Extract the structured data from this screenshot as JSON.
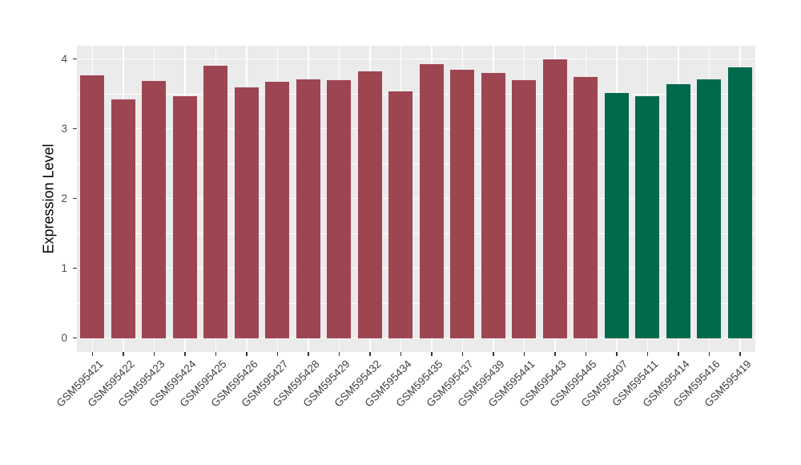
{
  "chart_data": {
    "type": "bar",
    "title": "",
    "xlabel": "",
    "ylabel": "Expression Level",
    "ylim": [
      -0.2,
      4.19
    ],
    "yticks": [
      0,
      1,
      2,
      3,
      4
    ],
    "yticks_minor": [
      0.5,
      1.5,
      2.5,
      3.5
    ],
    "grid": "on",
    "legend_position": "none",
    "categories": [
      "GSM595421",
      "GSM595422",
      "GSM595423",
      "GSM595424",
      "GSM595425",
      "GSM595426",
      "GSM595427",
      "GSM595428",
      "GSM595429",
      "GSM595432",
      "GSM595434",
      "GSM595435",
      "GSM595437",
      "GSM595439",
      "GSM595441",
      "GSM595443",
      "GSM595445",
      "GSM595407",
      "GSM595411",
      "GSM595414",
      "GSM595416",
      "GSM595419"
    ],
    "values": [
      3.76,
      3.42,
      3.69,
      3.47,
      3.9,
      3.59,
      3.67,
      3.71,
      3.7,
      3.82,
      3.54,
      3.93,
      3.85,
      3.8,
      3.7,
      3.99,
      3.74,
      3.51,
      3.47,
      3.64,
      3.71,
      3.88
    ],
    "groups": [
      "red",
      "red",
      "red",
      "red",
      "red",
      "red",
      "red",
      "red",
      "red",
      "red",
      "red",
      "red",
      "red",
      "red",
      "red",
      "red",
      "red",
      "green",
      "green",
      "green",
      "green",
      "green"
    ],
    "group_colors": {
      "red": "#9E4552",
      "green": "#00694B"
    },
    "panel_bg": "#EBEBEB",
    "grid_color": "#FFFFFF",
    "tick_label_color": "#4D4D4D",
    "axis_title_color": "#000000"
  }
}
